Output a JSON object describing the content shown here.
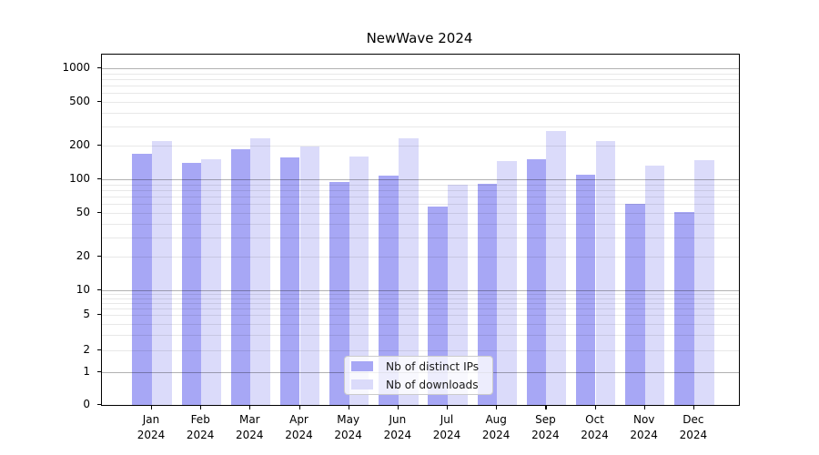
{
  "chart_data": {
    "type": "bar",
    "title": "NewWave 2024",
    "categories": [
      {
        "month": "Jan",
        "year": "2024"
      },
      {
        "month": "Feb",
        "year": "2024"
      },
      {
        "month": "Mar",
        "year": "2024"
      },
      {
        "month": "Apr",
        "year": "2024"
      },
      {
        "month": "May",
        "year": "2024"
      },
      {
        "month": "Jun",
        "year": "2024"
      },
      {
        "month": "Jul",
        "year": "2024"
      },
      {
        "month": "Aug",
        "year": "2024"
      },
      {
        "month": "Sep",
        "year": "2024"
      },
      {
        "month": "Oct",
        "year": "2024"
      },
      {
        "month": "Nov",
        "year": "2024"
      },
      {
        "month": "Dec",
        "year": "2024"
      }
    ],
    "series": [
      {
        "name": "Nb of distinct IPs",
        "color": "#a7a7f5",
        "values": [
          170,
          140,
          185,
          158,
          95,
          107,
          57,
          91,
          152,
          110,
          60,
          51
        ]
      },
      {
        "name": "Nb of downloads",
        "color": "#dbdbfa",
        "values": [
          220,
          152,
          235,
          196,
          160,
          235,
          90,
          146,
          273,
          222,
          133,
          150
        ]
      }
    ],
    "y_axis": {
      "scale": "symlog",
      "ticks": [
        0,
        1,
        2,
        5,
        10,
        20,
        50,
        100,
        200,
        500,
        1000
      ],
      "range": [
        0,
        1000
      ]
    },
    "x_axis": {
      "label": ""
    },
    "legend_position": "lower center",
    "grid": "horizontal major and minor"
  }
}
